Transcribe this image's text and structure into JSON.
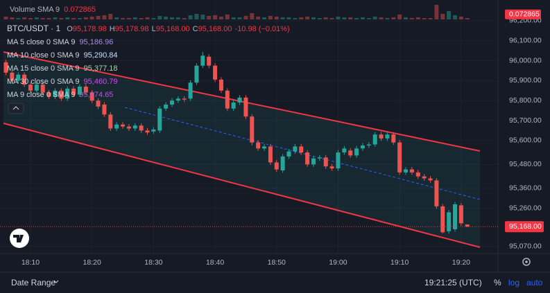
{
  "header": {
    "symbol": "BTC/USDT · 1",
    "ohlc": [
      "O",
      "95,178.98",
      "H",
      "95,178.98",
      "L",
      "95,168.00",
      "C",
      "95,168.00"
    ],
    "change": "-10.98 (−0.01%)"
  },
  "legend": [
    {
      "name": "MA 5 close 0 SMA 9",
      "value": "95,186.96",
      "color": "#a98ee0"
    },
    {
      "name": "MA 10 close 0 SMA 9",
      "value": "95,290.84",
      "color": "#bfe0ff"
    },
    {
      "name": "MA 15 close 0 SMA 9",
      "value": "95,377.18",
      "color": "#a5d6a7"
    },
    {
      "name": "MA 30 close 0 SMA 9",
      "value": "95,460.79",
      "color": "#e040fb"
    },
    {
      "name": "MA 9 close 0 SMA 9",
      "value": "95,374.65",
      "color": "#b05cd6"
    }
  ],
  "chart_data": {
    "type": "candlestick",
    "categories": [
      null,
      null,
      null,
      null,
      "18:10",
      null,
      null,
      null,
      null,
      null,
      null,
      null,
      null,
      null,
      "18:20",
      null,
      null,
      null,
      null,
      null,
      null,
      null,
      null,
      null,
      "18:30",
      null,
      null,
      null,
      null,
      null,
      null,
      null,
      null,
      null,
      "18:40",
      null,
      null,
      null,
      null,
      null,
      null,
      null,
      null,
      null,
      "18:50",
      null,
      null,
      null,
      null,
      null,
      null,
      null,
      null,
      null,
      "19:00",
      null,
      null,
      null,
      null,
      null,
      null,
      null,
      null,
      null,
      "19:10",
      null,
      null,
      null,
      null,
      null,
      null,
      null,
      null,
      null,
      "19:20",
      null
    ],
    "open": [
      95992,
      95940,
      95900,
      95930,
      95880,
      95850,
      95880,
      95840,
      95820,
      95850,
      95810,
      95860,
      95830,
      95870,
      95840,
      95800,
      95780,
      95730,
      95660,
      95680,
      95670,
      95660,
      95675,
      95650,
      95645,
      95650,
      95760,
      95780,
      95800,
      95810,
      95810,
      95890,
      95975,
      96020,
      95975,
      95905,
      95850,
      95760,
      95790,
      95815,
      95720,
      95590,
      95560,
      95570,
      95490,
      95450,
      95520,
      95545,
      95570,
      95540,
      95480,
      95510,
      95515,
      95470,
      95460,
      95540,
      95550,
      95525,
      95560,
      95575,
      95580,
      95630,
      95610,
      95630,
      95590,
      95440,
      95455,
      95440,
      95420,
      95410,
      95400,
      95270,
      95145,
      95155,
      95275,
      95178.98
    ],
    "high": [
      96004,
      95952,
      95942,
      95942,
      95892,
      95892,
      95892,
      95852,
      95862,
      95862,
      95872,
      95872,
      95882,
      95882,
      95852,
      95812,
      95792,
      95742,
      95692,
      95692,
      95682,
      95687,
      95687,
      95662,
      95667,
      95772,
      95792,
      95812,
      95822,
      95822,
      95902,
      95987,
      96044,
      96032,
      95987,
      95917,
      95862,
      95802,
      95827,
      95827,
      95732,
      95602,
      95582,
      95582,
      95502,
      95532,
      95557,
      95582,
      95582,
      95552,
      95522,
      95527,
      95527,
      95482,
      95552,
      95572,
      95562,
      95572,
      95587,
      95592,
      95642,
      95642,
      95642,
      95642,
      95602,
      95467,
      95467,
      95452,
      95432,
      95422,
      95412,
      95282,
      95252,
      95292,
      95287,
      95178.98
    ],
    "low": [
      95928,
      95888,
      95888,
      95868,
      95838,
      95838,
      95828,
      95808,
      95808,
      95798,
      95798,
      95818,
      95818,
      95828,
      95788,
      95758,
      95718,
      95648,
      95648,
      95658,
      95648,
      95648,
      95638,
      95628,
      95633,
      95638,
      95748,
      95768,
      95788,
      95793,
      95798,
      95878,
      95963,
      95963,
      95893,
      95838,
      95748,
      95748,
      95778,
      95708,
      95575,
      95548,
      95548,
      95478,
      95443,
      95438,
      95508,
      95533,
      95528,
      95468,
      95468,
      95498,
      95458,
      95448,
      95448,
      95528,
      95513,
      95513,
      95548,
      95563,
      95568,
      95598,
      95598,
      95578,
      95428,
      95428,
      95428,
      95408,
      95398,
      95388,
      95258,
      95134,
      95133,
      95143,
      95173,
      95168
    ],
    "close": [
      95940,
      95900,
      95930,
      95880,
      95850,
      95880,
      95840,
      95820,
      95850,
      95810,
      95860,
      95830,
      95870,
      95840,
      95800,
      95770,
      95730,
      95660,
      95680,
      95670,
      95660,
      95675,
      95650,
      95640,
      95655,
      95760,
      95780,
      95800,
      95810,
      95805,
      95890,
      95975,
      96025,
      95975,
      95905,
      95850,
      95760,
      95790,
      95815,
      95720,
      95590,
      95560,
      95570,
      95490,
      95455,
      95520,
      95545,
      95570,
      95540,
      95480,
      95510,
      95515,
      95470,
      95460,
      95540,
      95560,
      95525,
      95560,
      95575,
      95580,
      95630,
      95610,
      95630,
      95590,
      95440,
      95455,
      95440,
      95420,
      95410,
      95400,
      95270,
      95140,
      95240,
      95280,
      95185,
      95168
    ],
    "up_color": "#26a69a",
    "down_color": "#ef5350",
    "ylim": [
      95037,
      96304
    ],
    "yticks": [
      {
        "value": 96200,
        "label": "96,200.00"
      },
      {
        "value": 96100,
        "label": "96,100.00"
      },
      {
        "value": 96000,
        "label": "96,000.00"
      },
      {
        "value": 95900,
        "label": "95,900.00"
      },
      {
        "value": 95800,
        "label": "95,800.00"
      },
      {
        "value": 95700,
        "label": "95,700.00"
      },
      {
        "value": 95600,
        "label": "95,600.00"
      },
      {
        "value": 95480,
        "label": "95,480.00"
      },
      {
        "value": 95360,
        "label": "95,360.00"
      },
      {
        "value": 95260,
        "label": "95,260.00"
      },
      {
        "value": 95070,
        "label": "95,070.00"
      }
    ],
    "grid": true,
    "last_price": {
      "value": 95168,
      "label": "95,168.00"
    },
    "volume": {
      "name": "Volume SMA 9",
      "ylim": [
        0,
        0.25
      ],
      "sma": {
        "value": 0.072865,
        "label": "0.072865"
      },
      "values": [
        0.04,
        0.03,
        0.02,
        0.03,
        0.02,
        0.03,
        0.02,
        0.02,
        0.03,
        0.02,
        0.03,
        0.02,
        0.02,
        0.03,
        0.04,
        0.05,
        0.06,
        0.08,
        0.03,
        0.02,
        0.02,
        0.03,
        0.02,
        0.03,
        0.02,
        0.05,
        0.04,
        0.03,
        0.03,
        0.02,
        0.06,
        0.08,
        0.07,
        0.05,
        0.06,
        0.04,
        0.07,
        0.03,
        0.03,
        0.05,
        0.09,
        0.04,
        0.03,
        0.05,
        0.04,
        0.03,
        0.03,
        0.02,
        0.03,
        0.04,
        0.03,
        0.02,
        0.03,
        0.02,
        0.04,
        0.03,
        0.03,
        0.02,
        0.03,
        0.02,
        0.04,
        0.03,
        0.02,
        0.03,
        0.07,
        0.03,
        0.02,
        0.03,
        0.02,
        0.02,
        0.21,
        0.08,
        0.12,
        0.06,
        0.04,
        0.02
      ]
    }
  },
  "footer": {
    "date_range": "Date Range",
    "time": "19:21:25 (UTC)",
    "percent": "%",
    "log": "log",
    "auto": "auto"
  }
}
